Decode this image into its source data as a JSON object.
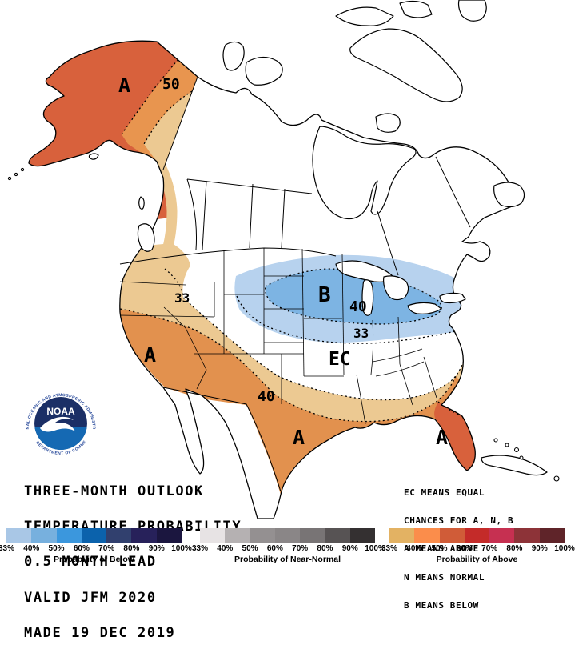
{
  "title_block": {
    "lines": [
      "THREE-MONTH OUTLOOK",
      "TEMPERATURE PROBABILITY",
      "0.5 MONTH LEAD",
      "VALID JFM 2020",
      "MADE 19 DEC 2019"
    ]
  },
  "legend_block": {
    "lines": [
      "EC MEANS EQUAL",
      "CHANCES FOR A, N, B",
      "A MEANS ABOVE",
      "N MEANS NORMAL",
      "B MEANS BELOW"
    ]
  },
  "noaa": {
    "acronym": "NOAA",
    "ring_top": "NATIONAL OCEANIC AND ATMOSPHERIC ADMINISTRATION",
    "ring_bottom": "U.S. DEPARTMENT OF COMMERCE"
  },
  "map": {
    "labels": {
      "alaska_a": "A",
      "alaska_50": "50",
      "west_33": "33",
      "california_a": "A",
      "southwest_40": "40",
      "texas_a": "A",
      "florida_a": "A",
      "midwest_b": "B",
      "midwest_40": "40",
      "midwest_33": "33",
      "center_ec": "EC"
    },
    "regions": [
      {
        "area": "Alaska",
        "category": "A (above normal)",
        "max_probability": "50-60%"
      },
      {
        "area": "West Coast / Southwest / Southern US to Southeast coast",
        "category": "A (above normal)",
        "max_probability": "40-50%"
      },
      {
        "area": "Florida peninsula",
        "category": "A (above normal)",
        "max_probability": "50-60%"
      },
      {
        "area": "Northern Plains / Upper Midwest / Great Lakes",
        "category": "B (below normal)",
        "max_probability": "40-50%"
      },
      {
        "area": "Remaining central and eastern US",
        "category": "EC (equal chances)",
        "max_probability": ""
      }
    ]
  },
  "palette": {
    "map_above_1": "#ecc992",
    "map_above_2": "#e2914e",
    "map_above_3": "#d8613c",
    "map_above_ak_mid": "#e8954f",
    "map_below_1": "#b7d2ee",
    "map_below_2": "#7db4e3",
    "logo_navy": "#1b2f66",
    "logo_blue": "#1569b3",
    "logo_ring_text": "#2b4c9c"
  },
  "colorbars": [
    {
      "caption": "Probability of Below",
      "ticks": [
        "33%",
        "40%",
        "50%",
        "60%",
        "70%",
        "80%",
        "90%",
        "100%"
      ],
      "colors": [
        "#a9c7e6",
        "#77b0de",
        "#3b97dd",
        "#0b62ac",
        "#31406e",
        "#27215a",
        "#1b163f"
      ]
    },
    {
      "caption": "Probability of Near-Normal",
      "ticks": [
        "33%",
        "40%",
        "50%",
        "60%",
        "70%",
        "80%",
        "90%",
        "100%"
      ],
      "colors": [
        "#e7e3e4",
        "#b5b1b2",
        "#949091",
        "#8a8687",
        "#787475",
        "#575354",
        "#343031"
      ]
    },
    {
      "caption": "Probability of Above",
      "ticks": [
        "33%",
        "40%",
        "50%",
        "60%",
        "70%",
        "80%",
        "90%",
        "100%"
      ],
      "colors": [
        "#e3b263",
        "#fb8d4b",
        "#d05c38",
        "#c42b29",
        "#c63051",
        "#8d3338",
        "#5f2429"
      ]
    }
  ]
}
